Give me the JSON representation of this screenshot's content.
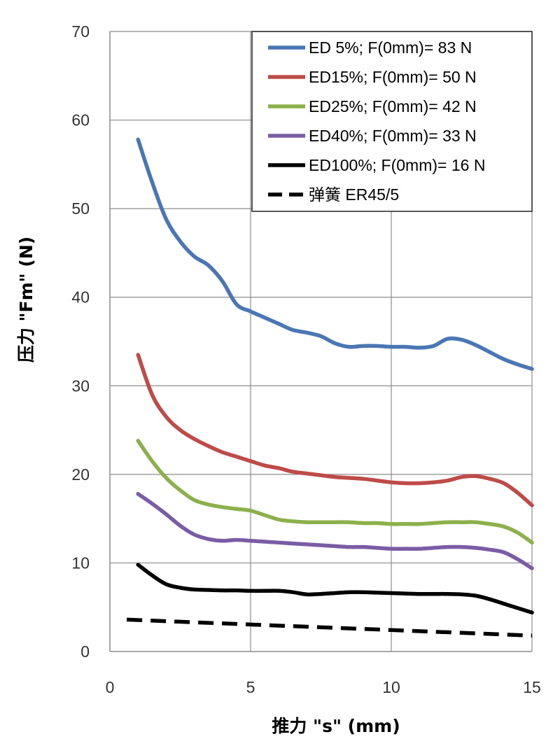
{
  "chart_data": {
    "type": "line",
    "xlabel": "推力 \"s\" (mm)",
    "ylabel": "压力 \"Fm\" (N)",
    "xlim": [
      0,
      15
    ],
    "ylim": [
      0,
      70
    ],
    "x_ticks": [
      "0",
      "5",
      "10",
      "15"
    ],
    "y_ticks": [
      "0",
      "10",
      "20",
      "30",
      "40",
      "50",
      "60",
      "70"
    ],
    "grid": true,
    "legend_position": "top-right",
    "series": [
      {
        "name": "ED 5%; F(0mm)= 83 N",
        "color": "#4A76B4",
        "style": "solid",
        "x": [
          1,
          1.5,
          2,
          2.5,
          3,
          3.5,
          4,
          4.5,
          5,
          5.5,
          6,
          6.5,
          7,
          7.5,
          8,
          8.5,
          9,
          9.5,
          10,
          10.5,
          11,
          11.5,
          12,
          12.5,
          13,
          13.5,
          14,
          14.5,
          15
        ],
        "y": [
          57.8,
          53.0,
          48.8,
          46.3,
          44.6,
          43.6,
          41.8,
          39.2,
          38.4,
          37.7,
          37.0,
          36.3,
          36.0,
          35.6,
          34.8,
          34.4,
          34.5,
          34.5,
          34.4,
          34.4,
          34.3,
          34.5,
          35.3,
          35.2,
          34.6,
          33.8,
          33.0,
          32.4,
          31.9
        ]
      },
      {
        "name": "ED15%; F(0mm)= 50 N",
        "color": "#BE4B48",
        "style": "solid",
        "x": [
          1,
          1.5,
          2,
          2.5,
          3,
          3.5,
          4,
          4.5,
          5,
          5.5,
          6,
          6.5,
          7,
          7.5,
          8,
          8.5,
          9,
          9.5,
          10,
          10.5,
          11,
          11.5,
          12,
          12.5,
          13,
          13.5,
          14,
          14.5,
          15
        ],
        "y": [
          33.5,
          29.0,
          26.5,
          25.0,
          24.0,
          23.2,
          22.5,
          22.0,
          21.5,
          21.0,
          20.7,
          20.3,
          20.1,
          19.9,
          19.7,
          19.6,
          19.5,
          19.3,
          19.1,
          19.0,
          19.0,
          19.1,
          19.3,
          19.7,
          19.8,
          19.5,
          19.0,
          17.9,
          16.5
        ]
      },
      {
        "name": "ED25%; F(0mm)= 42 N",
        "color": "#8CB04B",
        "style": "solid",
        "x": [
          1,
          1.5,
          2,
          2.5,
          3,
          3.5,
          4,
          4.5,
          5,
          5.5,
          6,
          6.5,
          7,
          7.5,
          8,
          8.5,
          9,
          9.5,
          10,
          10.5,
          11,
          11.5,
          12,
          12.5,
          13,
          13.5,
          14,
          14.5,
          15
        ],
        "y": [
          23.8,
          21.5,
          19.6,
          18.2,
          17.1,
          16.6,
          16.3,
          16.1,
          15.9,
          15.4,
          14.9,
          14.7,
          14.6,
          14.6,
          14.6,
          14.6,
          14.5,
          14.5,
          14.4,
          14.4,
          14.4,
          14.5,
          14.6,
          14.6,
          14.6,
          14.4,
          14.1,
          13.4,
          12.3
        ]
      },
      {
        "name": "ED40%; F(0mm)= 33 N",
        "color": "#7A5CA5",
        "style": "solid",
        "x": [
          1,
          1.5,
          2,
          2.5,
          3,
          3.5,
          4,
          4.5,
          5,
          5.5,
          6,
          6.5,
          7,
          7.5,
          8,
          8.5,
          9,
          9.5,
          10,
          10.5,
          11,
          11.5,
          12,
          12.5,
          13,
          13.5,
          14,
          14.5,
          15
        ],
        "y": [
          17.8,
          16.7,
          15.5,
          14.2,
          13.2,
          12.7,
          12.5,
          12.6,
          12.5,
          12.4,
          12.3,
          12.2,
          12.1,
          12.0,
          11.9,
          11.8,
          11.8,
          11.7,
          11.6,
          11.6,
          11.6,
          11.7,
          11.8,
          11.8,
          11.7,
          11.5,
          11.2,
          10.4,
          9.4
        ]
      },
      {
        "name": "ED100%; F(0mm)= 16 N",
        "color": "#000000",
        "style": "solid",
        "x": [
          1,
          1.5,
          2,
          2.5,
          3,
          3.5,
          4,
          4.5,
          5,
          5.5,
          6,
          6.5,
          7,
          7.5,
          8,
          8.5,
          9,
          9.5,
          10,
          10.5,
          11,
          11.5,
          12,
          12.5,
          13,
          13.5,
          14,
          14.5,
          15
        ],
        "y": [
          9.8,
          8.6,
          7.6,
          7.2,
          7.0,
          6.95,
          6.9,
          6.9,
          6.85,
          6.85,
          6.85,
          6.7,
          6.45,
          6.5,
          6.6,
          6.7,
          6.7,
          6.65,
          6.6,
          6.55,
          6.5,
          6.5,
          6.5,
          6.45,
          6.3,
          5.9,
          5.4,
          4.9,
          4.4
        ]
      },
      {
        "name": "弹簧      ER45/5",
        "color": "#000000",
        "style": "dashed",
        "x": [
          0.6,
          15
        ],
        "y": [
          3.6,
          1.8
        ]
      }
    ]
  }
}
